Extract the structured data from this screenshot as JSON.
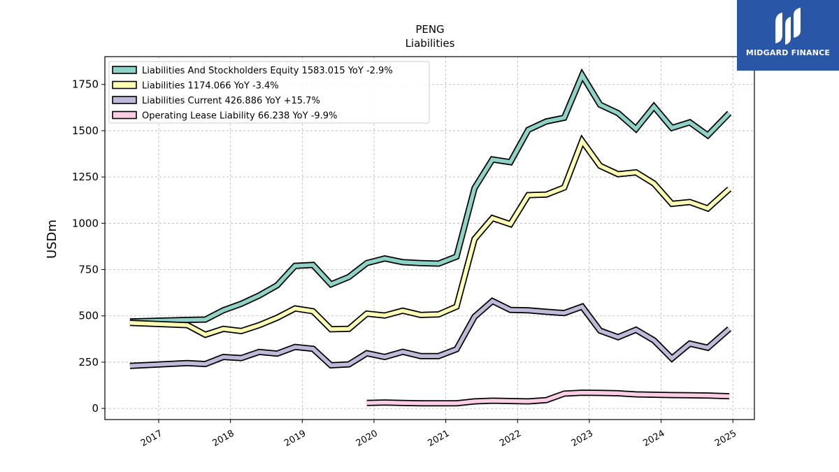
{
  "watermark": {
    "brand": "MIDGARD FINANCE",
    "bg_color": "#2a56a8"
  },
  "chart_data": {
    "type": "line",
    "title": "PENG",
    "subtitle": "Liabilities",
    "ylabel": "USDm",
    "xlabel": "",
    "ylim": [
      -60,
      1900
    ],
    "xlim": [
      2016.25,
      2025.3
    ],
    "y_ticks": [
      0,
      250,
      500,
      750,
      1000,
      1250,
      1500,
      1750
    ],
    "x_ticks": [
      2017,
      2018,
      2019,
      2020,
      2021,
      2022,
      2023,
      2024,
      2025
    ],
    "grid": true,
    "legend_position": "top-left",
    "series": [
      {
        "name": "Liabilities And Stockholders Equity",
        "legend": "Liabilities And Stockholders Equity  1583.015 YoY -2.9%",
        "color": "#8dd3c7",
        "x": [
          2016.6,
          2017.4,
          2017.65,
          2017.9,
          2018.15,
          2018.4,
          2018.65,
          2018.9,
          2019.15,
          2019.4,
          2019.65,
          2019.9,
          2020.15,
          2020.4,
          2020.65,
          2020.9,
          2021.15,
          2021.4,
          2021.65,
          2021.9,
          2022.15,
          2022.4,
          2022.65,
          2022.9,
          2023.15,
          2023.4,
          2023.65,
          2023.9,
          2024.15,
          2024.4,
          2024.65,
          2024.95
        ],
        "y": [
          470,
          478,
          480,
          530,
          565,
          610,
          665,
          770,
          775,
          670,
          710,
          785,
          810,
          790,
          785,
          782,
          820,
          1190,
          1345,
          1330,
          1505,
          1550,
          1570,
          1800,
          1640,
          1595,
          1510,
          1630,
          1515,
          1545,
          1475,
          1595
        ]
      },
      {
        "name": "Liabilities",
        "legend": "Liabilities  1174.066 YoY -3.4%",
        "color": "#ffffb3",
        "x": [
          2016.6,
          2017.4,
          2017.65,
          2017.9,
          2018.15,
          2018.4,
          2018.65,
          2018.9,
          2019.15,
          2019.4,
          2019.65,
          2019.9,
          2020.15,
          2020.4,
          2020.65,
          2020.9,
          2021.15,
          2021.4,
          2021.65,
          2021.9,
          2022.15,
          2022.4,
          2022.65,
          2022.9,
          2023.15,
          2023.4,
          2023.65,
          2023.9,
          2024.15,
          2024.4,
          2024.65,
          2024.95
        ],
        "y": [
          462,
          450,
          398,
          430,
          418,
          450,
          490,
          540,
          525,
          428,
          430,
          512,
          502,
          528,
          505,
          508,
          550,
          915,
          1028,
          995,
          1152,
          1155,
          1193,
          1445,
          1310,
          1265,
          1275,
          1215,
          1105,
          1115,
          1080,
          1185
        ]
      },
      {
        "name": "Liabilities Current",
        "legend": "Liabilities Current  426.886 YoY +15.7%",
        "color": "#bebada",
        "x": [
          2016.6,
          2017.4,
          2017.65,
          2017.9,
          2018.15,
          2018.4,
          2018.65,
          2018.9,
          2019.15,
          2019.4,
          2019.65,
          2019.9,
          2020.15,
          2020.4,
          2020.65,
          2020.9,
          2021.15,
          2021.4,
          2021.65,
          2021.9,
          2022.15,
          2022.4,
          2022.65,
          2022.9,
          2023.15,
          2023.4,
          2023.65,
          2023.9,
          2024.15,
          2024.4,
          2024.65,
          2024.95
        ],
        "y": [
          230,
          245,
          240,
          278,
          272,
          305,
          296,
          332,
          322,
          233,
          238,
          298,
          278,
          306,
          283,
          283,
          320,
          495,
          580,
          532,
          530,
          522,
          515,
          550,
          420,
          385,
          425,
          368,
          270,
          350,
          328,
          430
        ]
      },
      {
        "name": "Operating Lease Liability",
        "legend": "Operating Lease Liability  66.238 YoY -9.9%",
        "color": "#fccde5",
        "x": [
          2019.9,
          2020.15,
          2020.4,
          2020.65,
          2020.9,
          2021.15,
          2021.4,
          2021.65,
          2021.9,
          2022.15,
          2022.4,
          2022.65,
          2022.9,
          2023.15,
          2023.4,
          2023.65,
          2023.9,
          2024.15,
          2024.4,
          2024.65,
          2024.95
        ],
        "y": [
          30,
          32,
          30,
          28,
          28,
          28,
          38,
          42,
          40,
          38,
          45,
          80,
          85,
          84,
          82,
          76,
          74,
          72,
          71,
          70,
          66
        ]
      }
    ]
  }
}
